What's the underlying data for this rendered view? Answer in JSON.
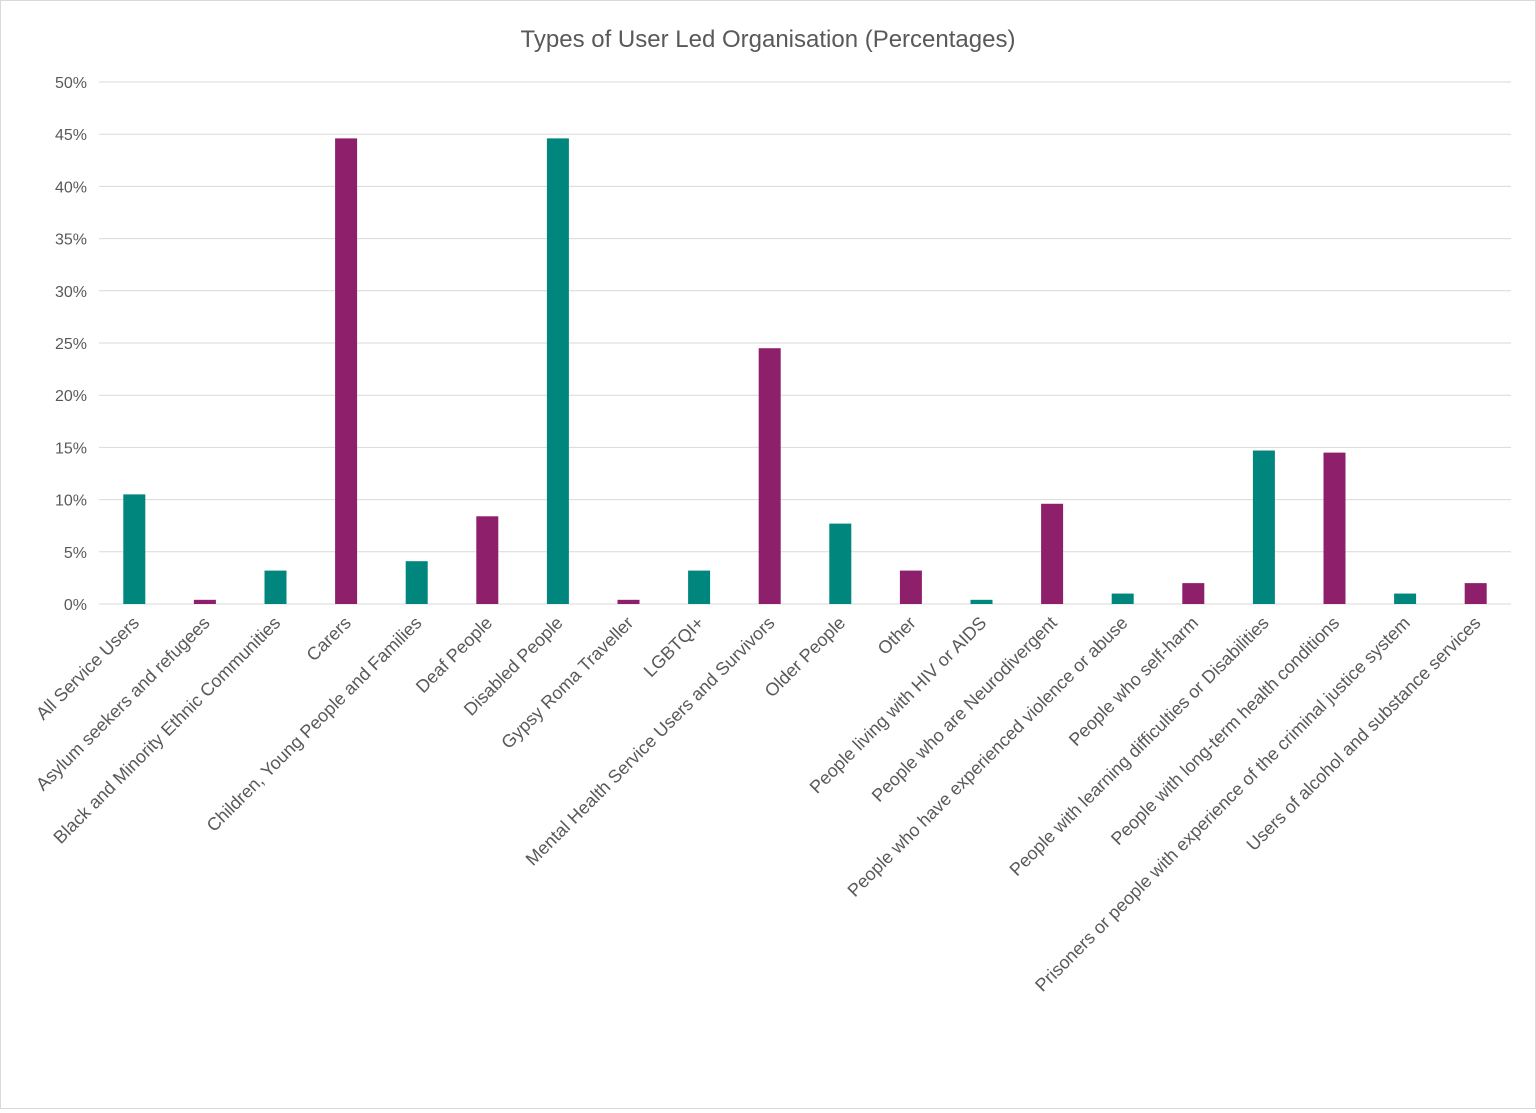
{
  "chart_data": {
    "type": "bar",
    "title": "Types of User Led Organisation (Percentages)",
    "xlabel": "",
    "ylabel": "",
    "ylim": [
      0,
      50
    ],
    "y_ticks": [
      "0%",
      "5%",
      "10%",
      "15%",
      "20%",
      "25%",
      "30%",
      "35%",
      "40%",
      "45%",
      "50%"
    ],
    "grid": true,
    "legend": "none",
    "colors": {
      "teal": "#00867d",
      "purple": "#8e1f6b"
    },
    "categories": [
      "All Service Users",
      "Asylum seekers and refugees",
      "Black and Minority Ethnic Communities",
      "Carers",
      "Children, Young People and Families",
      "Deaf People",
      "Disabled People",
      "Gypsy Roma Traveller",
      "LGBTQI+",
      "Mental Health Service Users and Survivors",
      "Older People",
      "Other",
      "People living with HIV or AIDS",
      "People who are Neurodivergent",
      "People who have experienced violence or abuse",
      "People who self-harm",
      "People with learning difficulties or Disabilities",
      "People with long-term health conditions",
      "Prisoners or people with experience of the criminal justice system",
      "Users of alcohol and substance services"
    ],
    "values": [
      10.5,
      0.4,
      3.2,
      44.6,
      4.1,
      8.4,
      44.6,
      0.4,
      3.2,
      24.5,
      7.7,
      3.2,
      0.4,
      9.6,
      1.0,
      2.0,
      14.7,
      14.5,
      1.0,
      2.0
    ],
    "bar_colors": [
      "teal",
      "purple",
      "teal",
      "purple",
      "teal",
      "purple",
      "teal",
      "purple",
      "teal",
      "purple",
      "teal",
      "purple",
      "teal",
      "purple",
      "teal",
      "purple",
      "teal",
      "purple",
      "teal",
      "purple"
    ]
  }
}
